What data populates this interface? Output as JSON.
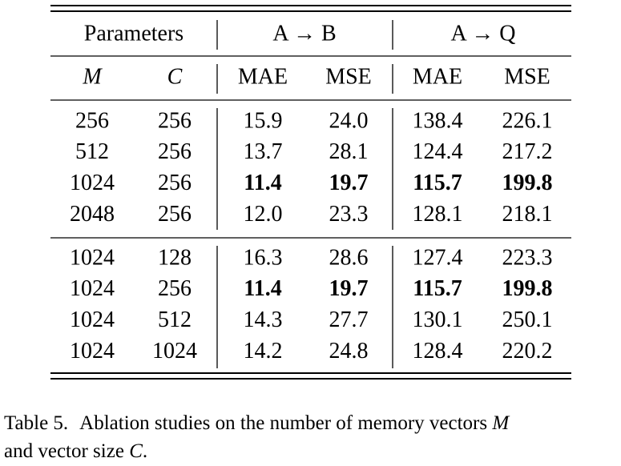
{
  "header": {
    "groups": [
      "Parameters",
      "A → B",
      "A → Q"
    ],
    "columns": [
      "M",
      "C",
      "MAE",
      "MSE",
      "MAE",
      "MSE"
    ]
  },
  "table": {
    "groups": [
      {
        "rows": [
          [
            "256",
            "256",
            "15.9",
            "24.0",
            "138.4",
            "226.1"
          ],
          [
            "512",
            "256",
            "13.7",
            "28.1",
            "124.4",
            "217.2"
          ],
          [
            "1024",
            "256",
            "11.4",
            "19.7",
            "115.7",
            "199.8"
          ],
          [
            "2048",
            "256",
            "12.0",
            "23.3",
            "128.1",
            "218.1"
          ]
        ],
        "bold_row": 2
      },
      {
        "rows": [
          [
            "1024",
            "128",
            "16.3",
            "28.6",
            "127.4",
            "223.3"
          ],
          [
            "1024",
            "256",
            "11.4",
            "19.7",
            "115.7",
            "199.8"
          ],
          [
            "1024",
            "512",
            "14.3",
            "27.7",
            "130.1",
            "250.1"
          ],
          [
            "1024",
            "1024",
            "14.2",
            "24.8",
            "128.4",
            "220.2"
          ]
        ],
        "bold_row": 1
      }
    ]
  },
  "caption": {
    "label": "Table 5.",
    "parts": [
      "Ablation studies on the number of memory vectors ",
      "M",
      "and vector size ",
      "C",
      "."
    ]
  }
}
